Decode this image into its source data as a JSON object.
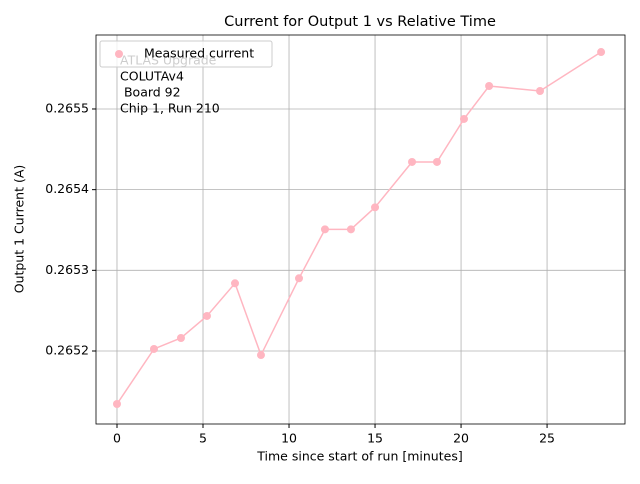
{
  "chart_data": {
    "type": "line",
    "title": "Current for Output 1 vs Relative Time",
    "xlabel": "Time since start of run [minutes]",
    "ylabel": "Output 1 Current (A)",
    "annotations": [
      "ATLAS Upgrade",
      "COLUTAv4",
      " Board 92",
      "Chip 1, Run 210"
    ],
    "series": [
      {
        "name": "Measured current",
        "color": "#ffb6c1",
        "x": [
          0,
          2.15,
          3.72,
          5.23,
          6.86,
          8.37,
          10.58,
          12.09,
          13.6,
          15.0,
          17.15,
          18.6,
          20.17,
          21.63,
          24.59,
          28.14
        ],
        "values": [
          0.2651343,
          0.2652025,
          0.2652161,
          0.2652434,
          0.2652839,
          0.265195,
          0.2652901,
          0.2653508,
          0.2653508,
          0.2653781,
          0.2654343,
          0.2654343,
          0.2654876,
          0.2655285,
          0.2655223,
          0.2655706
        ]
      }
    ],
    "xlim": [
      -1.22,
      29.53
    ],
    "xticks": [
      0,
      5,
      10,
      15,
      20,
      25
    ],
    "ylim": [
      0.2651095,
      0.2655917
    ],
    "yticks": [
      0.2652,
      0.2653,
      0.2654,
      0.2655
    ],
    "grid": true,
    "legend": "upper left"
  }
}
